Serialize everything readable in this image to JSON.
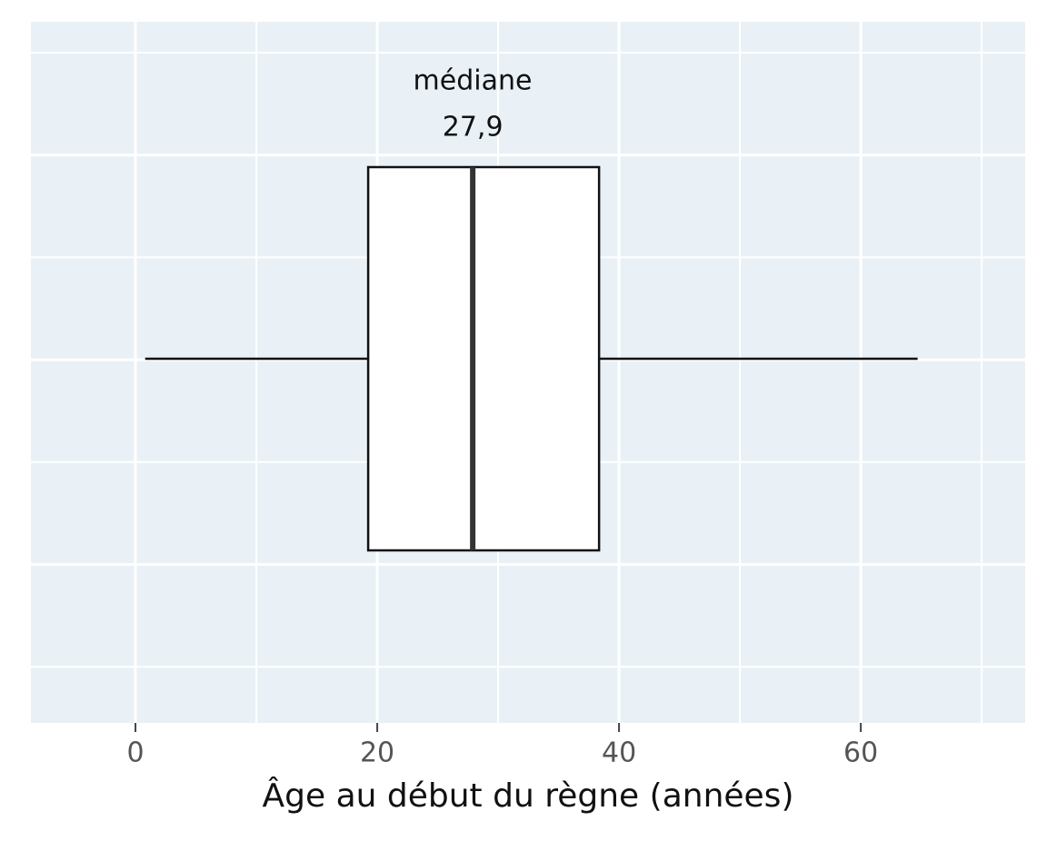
{
  "chart_data": {
    "type": "boxplot",
    "x_label": "Âge au début du règne (années)",
    "annotation": "médiane",
    "min": 0.8,
    "q1": 19.25,
    "median": 27.9,
    "q3": 38.35,
    "max": 64.7,
    "median_label": "27,9",
    "xlim": [
      -8.65,
      73.6
    ],
    "xticks": [
      0,
      20,
      40,
      60
    ],
    "xminor": [
      10,
      30,
      50,
      70
    ],
    "grid": true,
    "panel_color": "#e9f1f6",
    "box_color": "#ffffff"
  }
}
